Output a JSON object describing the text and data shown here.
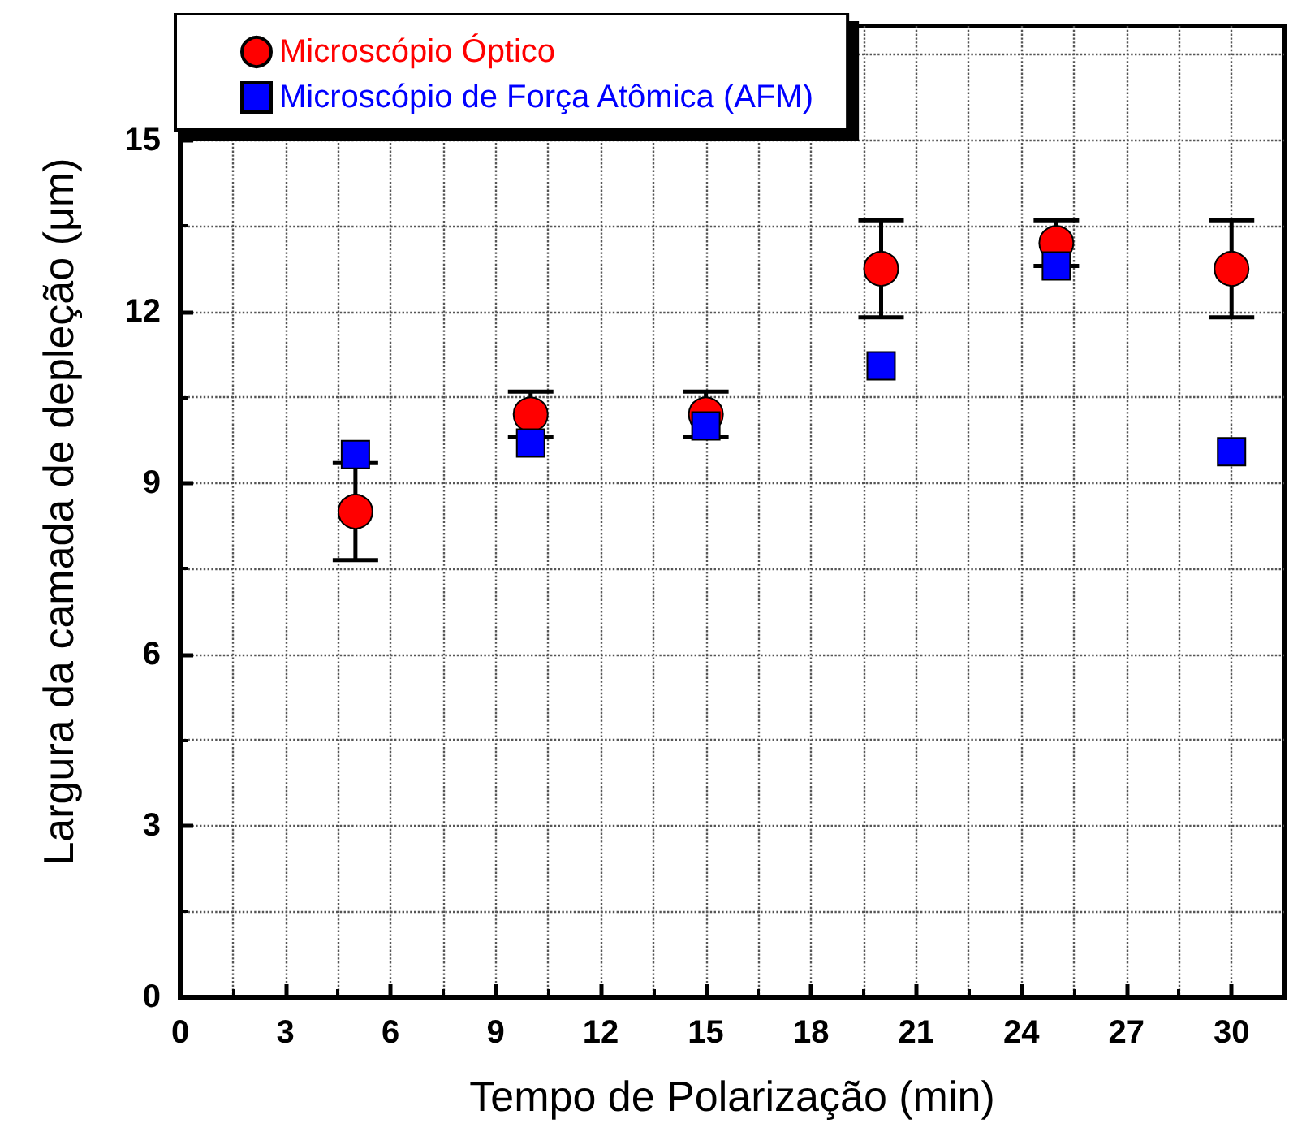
{
  "chart_data": {
    "type": "scatter",
    "xlabel": "Tempo de Polarização (min)",
    "ylabel": "Largura da camada de depleção (μm)",
    "x": [
      5,
      10,
      15,
      20,
      25,
      30
    ],
    "series": [
      {
        "name": "Microscópio Óptico",
        "color": "#ff0000",
        "marker": "circle",
        "values": [
          8.5,
          10.2,
          10.2,
          12.75,
          13.2,
          12.75
        ],
        "errors": [
          0.85,
          0.4,
          0.4,
          0.85,
          0.4,
          0.85
        ]
      },
      {
        "name": "Microscópio de Força Atômica (AFM)",
        "color": "#0000ff",
        "marker": "square",
        "values": [
          9.5,
          9.7,
          10.0,
          11.05,
          12.8,
          9.55
        ]
      }
    ],
    "xlim": [
      0,
      31.5
    ],
    "xticks": [
      0,
      3,
      6,
      9,
      12,
      15,
      18,
      21,
      24,
      27,
      30
    ],
    "ylim": [
      0,
      17
    ],
    "yticks": [
      0,
      3,
      6,
      9,
      12,
      15
    ],
    "grid": true,
    "legend": "top"
  }
}
